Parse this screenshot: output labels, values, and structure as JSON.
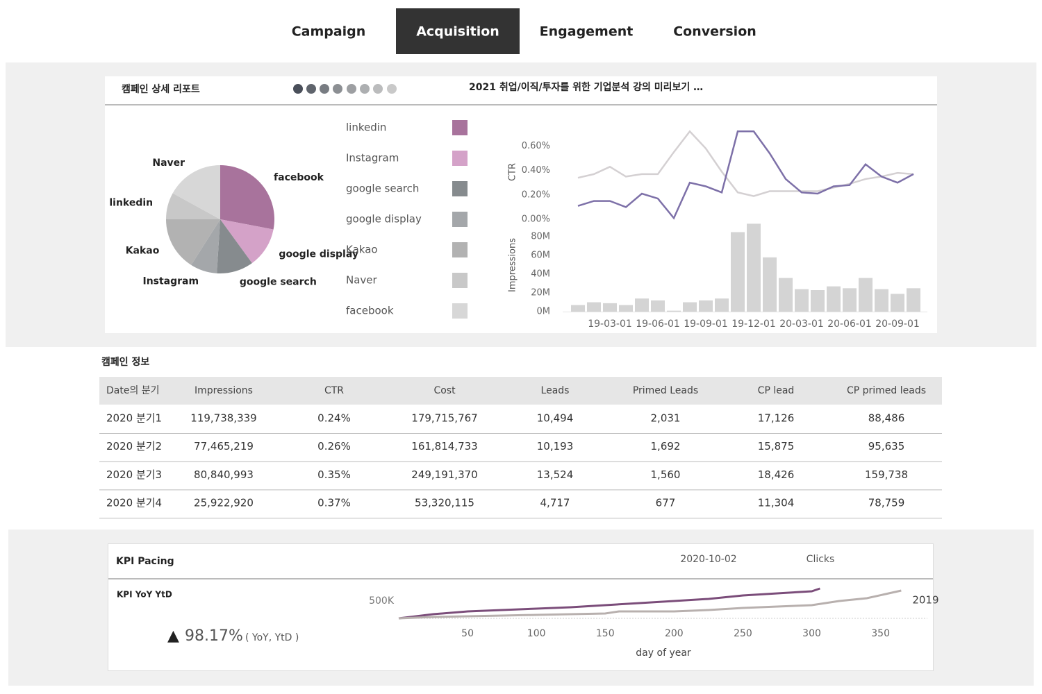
{
  "tabs": [
    "Campaign",
    "Acquisition",
    "Engagement",
    "Conversion"
  ],
  "active_tab": 1,
  "report": {
    "title": "캠페인 상세 리포트",
    "subtitle": "2021 취업/이직/투자를 위한 기업분석 강의 미리보기 …",
    "pie": {
      "type": "pie",
      "categories": [
        "facebook",
        "google display",
        "google search",
        "Instagram",
        "Kakao",
        "linkedin",
        "Naver"
      ],
      "values": [
        28,
        12,
        11,
        8,
        16,
        8,
        17
      ],
      "colors": [
        "#a8739c",
        "#d4a2c8",
        "#868b8e",
        "#a4a7aa",
        "#b2b2b2",
        "#c8c8c8",
        "#d7d7d7"
      ]
    },
    "legend": [
      {
        "name": "linkedin",
        "color": "#a8739c"
      },
      {
        "name": "Instagram",
        "color": "#d4a2c8"
      },
      {
        "name": "google search",
        "color": "#868b8e"
      },
      {
        "name": "google display",
        "color": "#a4a7aa"
      },
      {
        "name": "Kakao",
        "color": "#b2b2b2"
      },
      {
        "name": "Naver",
        "color": "#c8c8c8"
      },
      {
        "name": "facebook",
        "color": "#d7d7d7"
      }
    ],
    "combo": {
      "type": "combo",
      "categories": [
        null,
        null,
        "19-03-01",
        null,
        null,
        "19-06-01",
        null,
        null,
        "19-09-01",
        null,
        null,
        "19-12-01",
        null,
        null,
        "20-03-01",
        null,
        null,
        "20-06-01",
        null,
        null,
        "20-09-01",
        null
      ],
      "ctr": {
        "label": "CTR",
        "ylim": [
          0,
          0.75
        ],
        "yticks": [
          {
            "value": 0,
            "label": "0.00%"
          },
          {
            "value": 0.2,
            "label": "0.20%"
          },
          {
            "value": 0.4,
            "label": "0.40%"
          },
          {
            "value": 0.6,
            "label": "0.60%"
          }
        ],
        "series": [
          {
            "color": "#d4d0d2",
            "values": [
              0.34,
              0.37,
              0.43,
              0.35,
              0.37,
              0.37,
              0.55,
              0.72,
              0.58,
              0.39,
              0.22,
              0.19,
              0.23,
              0.23,
              0.23,
              0.23,
              0.26,
              0.29,
              0.33,
              0.35,
              0.38,
              0.37
            ]
          },
          {
            "color": "#7d70a8",
            "values": [
              0.11,
              0.15,
              0.15,
              0.1,
              0.21,
              0.17,
              0.01,
              0.3,
              0.27,
              0.22,
              0.72,
              0.72,
              0.54,
              0.33,
              0.22,
              0.21,
              0.27,
              0.28,
              0.45,
              0.35,
              0.3,
              0.37
            ]
          }
        ]
      },
      "impressions": {
        "label": "Impressions",
        "ylim": [
          0,
          95000000
        ],
        "yticks": [
          {
            "value": 0,
            "label": "0M"
          },
          {
            "value": 20000000,
            "label": "20M"
          },
          {
            "value": 40000000,
            "label": "40M"
          },
          {
            "value": 60000000,
            "label": "60M"
          },
          {
            "value": 80000000,
            "label": "80M"
          }
        ],
        "color": "#d4d4d4",
        "values": [
          7000000,
          10000000,
          9000000,
          7000000,
          14000000,
          12000000,
          1000000,
          10000000,
          12000000,
          14000000,
          85000000,
          94000000,
          58000000,
          36000000,
          24000000,
          23000000,
          27000000,
          25000000,
          36000000,
          24000000,
          19000000,
          25000000
        ]
      }
    }
  },
  "table": {
    "title": "캠페인 정보",
    "columns": [
      "Date의 분기",
      "Impressions",
      "CTR",
      "Cost",
      "Leads",
      "Primed Leads",
      "CP lead",
      "CP primed leads"
    ],
    "rows": [
      [
        "2020 분기1",
        "119,738,339",
        "0.24%",
        "179,715,767",
        "10,494",
        "2,031",
        "17,126",
        "88,486"
      ],
      [
        "2020 분기2",
        "77,465,219",
        "0.26%",
        "161,814,733",
        "10,193",
        "1,692",
        "15,875",
        "95,635"
      ],
      [
        "2020 분기3",
        "80,840,993",
        "0.35%",
        "249,191,370",
        "13,524",
        "1,560",
        "18,426",
        "159,738"
      ],
      [
        "2020 분기4",
        "25,922,920",
        "0.37%",
        "53,320,115",
        "4,717",
        "677",
        "11,304",
        "78,759"
      ]
    ]
  },
  "kpi": {
    "title": "KPI Pacing",
    "date": "2020-10-02",
    "metric": "Clicks",
    "subtitle": "KPI YoY YtD",
    "arrow": "▲",
    "value": "98.17%",
    "note": "( YoY,  YtD )",
    "chart": {
      "type": "line",
      "xlabel": "day of year",
      "xlim": [
        0,
        384
      ],
      "xticks": [
        50,
        100,
        150,
        200,
        250,
        300,
        350
      ],
      "ylim": [
        0,
        920000
      ],
      "yticks": [
        {
          "value": 500000,
          "label": "500K"
        }
      ],
      "series": [
        {
          "color": "#7b4d7a",
          "x": [
            0,
            25,
            50,
            75,
            100,
            125,
            150,
            175,
            200,
            225,
            250,
            275,
            300,
            306
          ],
          "values": [
            0,
            120000,
            200000,
            240000,
            280000,
            320000,
            380000,
            440000,
            500000,
            560000,
            660000,
            720000,
            780000,
            860000
          ]
        },
        {
          "name": "2019",
          "color": "#b8b0ae",
          "x": [
            0,
            25,
            50,
            75,
            100,
            125,
            150,
            160,
            200,
            225,
            250,
            275,
            300,
            320,
            340,
            365
          ],
          "values": [
            0,
            40000,
            60000,
            80000,
            100000,
            120000,
            140000,
            200000,
            200000,
            240000,
            300000,
            340000,
            380000,
            500000,
            580000,
            800000
          ]
        }
      ]
    }
  }
}
